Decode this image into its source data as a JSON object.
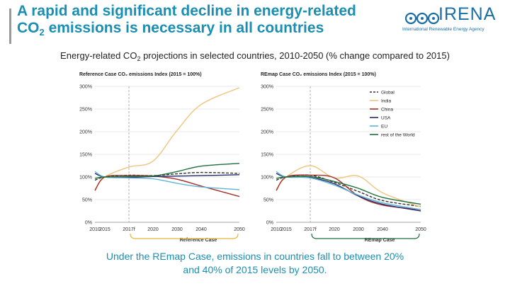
{
  "header": {
    "title_line1": "A rapid and significant decline in energy-related",
    "title_co": "CO",
    "title_sub": "2",
    "title_rest": " emissions is necessary in all countries"
  },
  "logo": {
    "name": "IRENA",
    "tagline": "International Renewable Energy Agency"
  },
  "figure": {
    "title_pre": "Energy-related CO",
    "title_sub": "2",
    "title_post": " projections in selected countries, 2010-2050 (% change compared to 2015)"
  },
  "colors": {
    "Global": "#333333",
    "India": "#f0c47c",
    "China": "#a3302a",
    "USA": "#262b6b",
    "EU": "#5fb3d6",
    "rest of the World": "#1f6f3a",
    "bracket": "#e8b33a",
    "grid": "#d0d0d0"
  },
  "chart_data": [
    {
      "type": "line",
      "title": "Reference Case CO₂ emissions Index (2015 = 100%)",
      "case_label": "Reference Case",
      "x_ticks": [
        "2010",
        "2015",
        "2017f",
        "2020",
        "2030",
        "2040",
        "2050"
      ],
      "y_ticks": [
        "0%",
        "50%",
        "100%",
        "150%",
        "200%",
        "250%",
        "300%"
      ],
      "ylim": [
        0,
        300
      ],
      "series": [
        {
          "name": "Global",
          "values": [
            93,
            100,
            104,
            103,
            107,
            110,
            108
          ]
        },
        {
          "name": "India",
          "values": [
            72,
            100,
            122,
            135,
            203,
            260,
            297
          ]
        },
        {
          "name": "China",
          "values": [
            70,
            100,
            103,
            102,
            95,
            80,
            57
          ]
        },
        {
          "name": "USA",
          "values": [
            108,
            100,
            99,
            101,
            102,
            103,
            105
          ]
        },
        {
          "name": "EU",
          "values": [
            112,
            100,
            98,
            96,
            86,
            78,
            72
          ]
        },
        {
          "name": "rest of the World",
          "values": [
            97,
            100,
            101,
            102,
            112,
            124,
            130
          ]
        }
      ]
    },
    {
      "type": "line",
      "title": "REmap Case CO₂ emissions Index (2015 = 100%)",
      "case_label": "REmap Case",
      "x_ticks": [
        "2010",
        "2015",
        "2017f",
        "2020",
        "2030",
        "2040",
        "2050"
      ],
      "y_ticks": [
        "0%",
        "50%",
        "100%",
        "150%",
        "200%",
        "250%",
        "300%"
      ],
      "ylim": [
        0,
        300
      ],
      "legend": [
        "Global",
        "India",
        "China",
        "USA",
        "EU",
        "rest of the World"
      ],
      "legend_position": "top-right",
      "series": [
        {
          "name": "Global",
          "values": [
            93,
            100,
            104,
            88,
            68,
            48,
            35
          ]
        },
        {
          "name": "India",
          "values": [
            72,
            100,
            125,
            98,
            102,
            65,
            34
          ]
        },
        {
          "name": "China",
          "values": [
            70,
            100,
            104,
            98,
            58,
            38,
            28
          ]
        },
        {
          "name": "USA",
          "values": [
            108,
            100,
            99,
            85,
            58,
            40,
            25
          ]
        },
        {
          "name": "EU",
          "values": [
            112,
            100,
            98,
            82,
            60,
            43,
            28
          ]
        },
        {
          "name": "rest of the World",
          "values": [
            97,
            100,
            101,
            90,
            75,
            55,
            40
          ]
        }
      ]
    }
  ],
  "footnote": {
    "line1": "Under the REmap Case, emissions in countries fall to between 20%",
    "line2": "and 40% of 2015 levels by 2050."
  }
}
